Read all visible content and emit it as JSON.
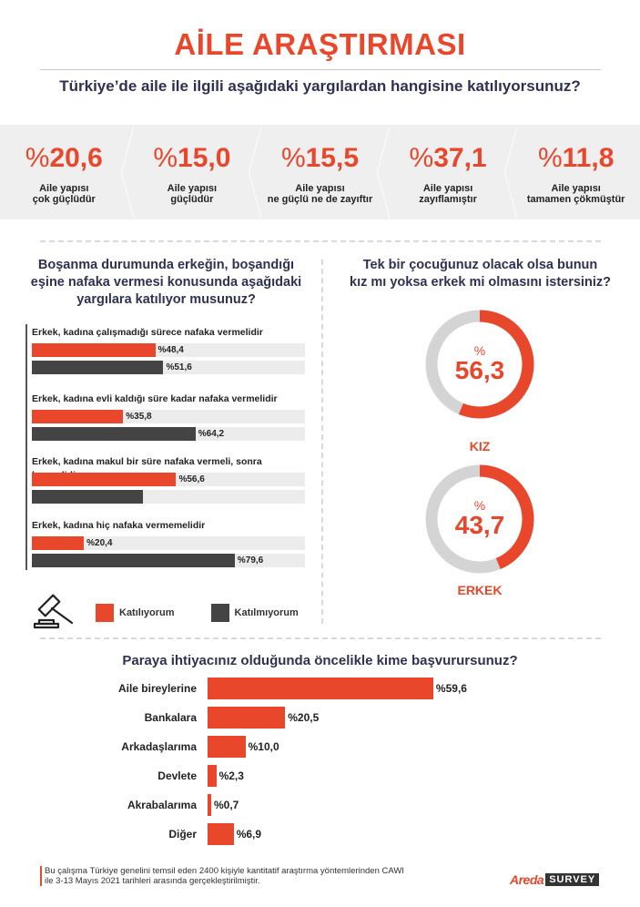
{
  "header": {
    "title": "AİLE ARAŞTIRMASI",
    "question": "Türkiye’de aile ile ilgili aşağıdaki yargılardan hangisine katılıyorsunuz?"
  },
  "stats": [
    {
      "pct": "%",
      "value": "20,6",
      "label_line1": "Aile yapısı",
      "label_line2": "çok güçlüdür"
    },
    {
      "pct": "%",
      "value": "15,0",
      "label_line1": "Aile yapısı",
      "label_line2": "güçlüdür"
    },
    {
      "pct": "%",
      "value": "15,5",
      "label_line1": "Aile yapısı",
      "label_line2": "ne güçlü ne de zayıftır"
    },
    {
      "pct": "%",
      "value": "37,1",
      "label_line1": "Aile yapısı",
      "label_line2": "zayıflamıştır"
    },
    {
      "pct": "%",
      "value": "11,8",
      "label_line1": "Aile yapısı",
      "label_line2": "tamamen çökmüştür"
    }
  ],
  "alimony": {
    "question_line1": "Boşanma durumunda erkeğin, boşandığı",
    "question_line2": "eşine nafaka vermesi konusunda aşağıdaki",
    "question_line3": "yargılara katılıyor musunuz?",
    "items": [
      {
        "caption": "Erkek, kadına çalışmadığı sürece nafaka vermelidir",
        "agree": 48.4,
        "agree_label": "%48,4",
        "disagree": 51.6,
        "disagree_label": "%51,6"
      },
      {
        "caption": "Erkek, kadına evli kaldığı süre kadar nafaka vermelidir",
        "agree": 35.8,
        "agree_label": "%35,8",
        "disagree": 64.2,
        "disagree_label": "%64,2"
      },
      {
        "caption": "Erkek, kadına makul bir süre nafaka vermeli, sonra kesmelidir",
        "agree": 56.6,
        "agree_label": "%56,6",
        "disagree": 43.4,
        "disagree_label": ""
      },
      {
        "caption": "Erkek, kadına hiç nafaka vermemelidir",
        "agree": 20.4,
        "agree_label": "%20,4",
        "disagree": 79.6,
        "disagree_label": "%79,6"
      }
    ],
    "legend": {
      "agree": "Katılıyorum",
      "disagree": "Katılmıyorum"
    }
  },
  "child": {
    "question_line1": "Tek bir çocuğunuz olacak olsa bunun",
    "question_line2": "kız mı yoksa erkek mi olmasını istersiniz?",
    "options": [
      {
        "pct": "%",
        "value": "56,3",
        "numeric": 56.3,
        "label": "KIZ"
      },
      {
        "pct": "%",
        "value": "43,7",
        "numeric": 43.7,
        "label": "ERKEK"
      }
    ]
  },
  "money": {
    "question": "Paraya ihtiyacınız olduğunda öncelikle kime başvurursunuz?",
    "items": [
      {
        "label": "Aile bireylerine",
        "value": 59.6,
        "value_label": "%59,6"
      },
      {
        "label": "Bankalara",
        "value": 20.5,
        "value_label": "%20,5"
      },
      {
        "label": "Arkadaşlarıma",
        "value": 10.0,
        "value_label": "%10,0"
      },
      {
        "label": "Devlete",
        "value": 2.3,
        "value_label": "%2,3"
      },
      {
        "label": "Akrabalarıma",
        "value": 0.7,
        "value_label": "%0,7"
      },
      {
        "label": "Diğer",
        "value": 6.9,
        "value_label": "%6,9"
      }
    ]
  },
  "footer": {
    "note_line1": "Bu çalışma Türkiye genelini temsil eden 2400 kişiyle kantitatif araştırma yöntemlerinden CAWI",
    "note_line2": "ile 3-13 Mayıs 2021 tarihleri arasında gerçekleştirilmiştir.",
    "logo_brand": "Areda",
    "logo_survey": "SURVEY"
  },
  "colors": {
    "accent": "#e8472b",
    "dark_bar": "#444444",
    "track": "#ececec",
    "donut_track": "#d4d4d4",
    "heading": "#2f3152"
  },
  "chart_data": [
    {
      "type": "table",
      "title": "Türkiye’de aile ile ilgili aşağıdaki yargılardan hangisine katılıyorsunuz?",
      "categories": [
        "Aile yapısı çok güçlüdür",
        "Aile yapısı güçlüdür",
        "Aile yapısı ne güçlü ne de zayıftır",
        "Aile yapısı zayıflamıştır",
        "Aile yapısı tamamen çökmüştür"
      ],
      "values": [
        20.6,
        15.0,
        15.5,
        37.1,
        11.8
      ]
    },
    {
      "type": "bar",
      "orientation": "horizontal",
      "title": "Boşanma durumunda erkeğin, boşandığı eşine nafaka vermesi konusunda aşağıdaki yargılara katılıyor musunuz?",
      "categories": [
        "Erkek, kadına çalışmadığı sürece nafaka vermelidir",
        "Erkek, kadına evli kaldığı süre kadar nafaka vermelidir",
        "Erkek, kadına makul bir süre nafaka vermeli, sonra kesmelidir",
        "Erkek, kadına hiç nafaka vermemelidir"
      ],
      "series": [
        {
          "name": "Katılıyorum",
          "values": [
            48.4,
            35.8,
            56.6,
            20.4
          ]
        },
        {
          "name": "Katılmıyorum",
          "values": [
            51.6,
            64.2,
            43.4,
            79.6
          ]
        }
      ],
      "legend_position": "bottom"
    },
    {
      "type": "pie",
      "title": "Tek bir çocuğunuz olacak olsa bunun kız mı yoksa erkek mi olmasını istersiniz?",
      "categories": [
        "KIZ",
        "ERKEK"
      ],
      "values": [
        56.3,
        43.7
      ]
    },
    {
      "type": "bar",
      "orientation": "horizontal",
      "title": "Paraya ihtiyacınız olduğunda öncelikle kime başvurursunuz?",
      "categories": [
        "Aile bireylerine",
        "Bankalara",
        "Arkadaşlarıma",
        "Devlete",
        "Akrabalarıma",
        "Diğer"
      ],
      "values": [
        59.6,
        20.5,
        10.0,
        2.3,
        0.7,
        6.9
      ],
      "xlabel": "",
      "ylabel": ""
    }
  ]
}
